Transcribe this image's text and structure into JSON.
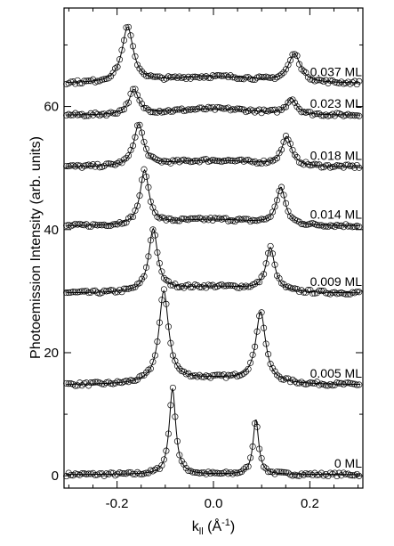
{
  "chart_data": {
    "type": "scatter",
    "ylabel": "Photoemission Intensity (arb. units)",
    "xlabel_main": "k",
    "xlabel_sub": "ll",
    "xlabel_unit_open": " (",
    "xlabel_unit": "Å",
    "xlabel_unit_exp": "-1",
    "xlabel_unit_close": ")",
    "xlim": [
      -0.31,
      0.31
    ],
    "ylim": [
      -2,
      76
    ],
    "x_ticks": [
      -0.2,
      0.0,
      0.2
    ],
    "x_tick_labels": [
      "-0.2",
      "0.0",
      "0.2"
    ],
    "x_minor_ticks": [
      -0.3,
      -0.25,
      -0.15,
      -0.1,
      -0.05,
      0.05,
      0.1,
      0.15,
      0.25,
      0.3
    ],
    "y_ticks": [
      0,
      20,
      40,
      60
    ],
    "y_tick_labels": [
      "0",
      "20",
      "40",
      "60"
    ],
    "y_minor_ticks": [
      10,
      30,
      50,
      70
    ],
    "grid": false,
    "marker": "open-circle",
    "series": [
      {
        "name": "0 ML",
        "baseline": 0.2,
        "background": 0,
        "left_peak": {
          "k": -0.085,
          "height": 14.0,
          "width": 0.008
        },
        "right_peak": {
          "k": 0.088,
          "height": 9.0,
          "width": 0.007
        }
      },
      {
        "name": "0.005 ML",
        "baseline": 14.8,
        "background": 1,
        "left_peak": {
          "k": -0.103,
          "height": 14.7,
          "width": 0.012
        },
        "right_peak": {
          "k": 0.098,
          "height": 11.3,
          "width": 0.012
        }
      },
      {
        "name": "0.009 ML",
        "baseline": 29.7,
        "background": 1,
        "left_peak": {
          "k": -0.125,
          "height": 10.1,
          "width": 0.011
        },
        "right_peak": {
          "k": 0.118,
          "height": 7.0,
          "width": 0.011
        }
      },
      {
        "name": "0.014 ML",
        "baseline": 40.6,
        "background": 1,
        "left_peak": {
          "k": -0.143,
          "height": 8.8,
          "width": 0.011
        },
        "right_peak": {
          "k": 0.14,
          "height": 6.0,
          "width": 0.011
        }
      },
      {
        "name": "0.018 ML",
        "baseline": 50.2,
        "background": 1,
        "left_peak": {
          "k": -0.155,
          "height": 6.7,
          "width": 0.012
        },
        "right_peak": {
          "k": 0.152,
          "height": 4.7,
          "width": 0.012
        }
      },
      {
        "name": "0.023 ML",
        "baseline": 58.6,
        "background": 1,
        "left_peak": {
          "k": -0.165,
          "height": 4.0,
          "width": 0.012
        },
        "right_peak": {
          "k": 0.162,
          "height": 2.5,
          "width": 0.012
        }
      },
      {
        "name": "0.037 ML",
        "baseline": 63.8,
        "background": 1,
        "left_peak": {
          "k": -0.178,
          "height": 9.0,
          "width": 0.014
        },
        "right_peak": {
          "k": 0.168,
          "height": 4.6,
          "width": 0.015
        }
      }
    ]
  }
}
